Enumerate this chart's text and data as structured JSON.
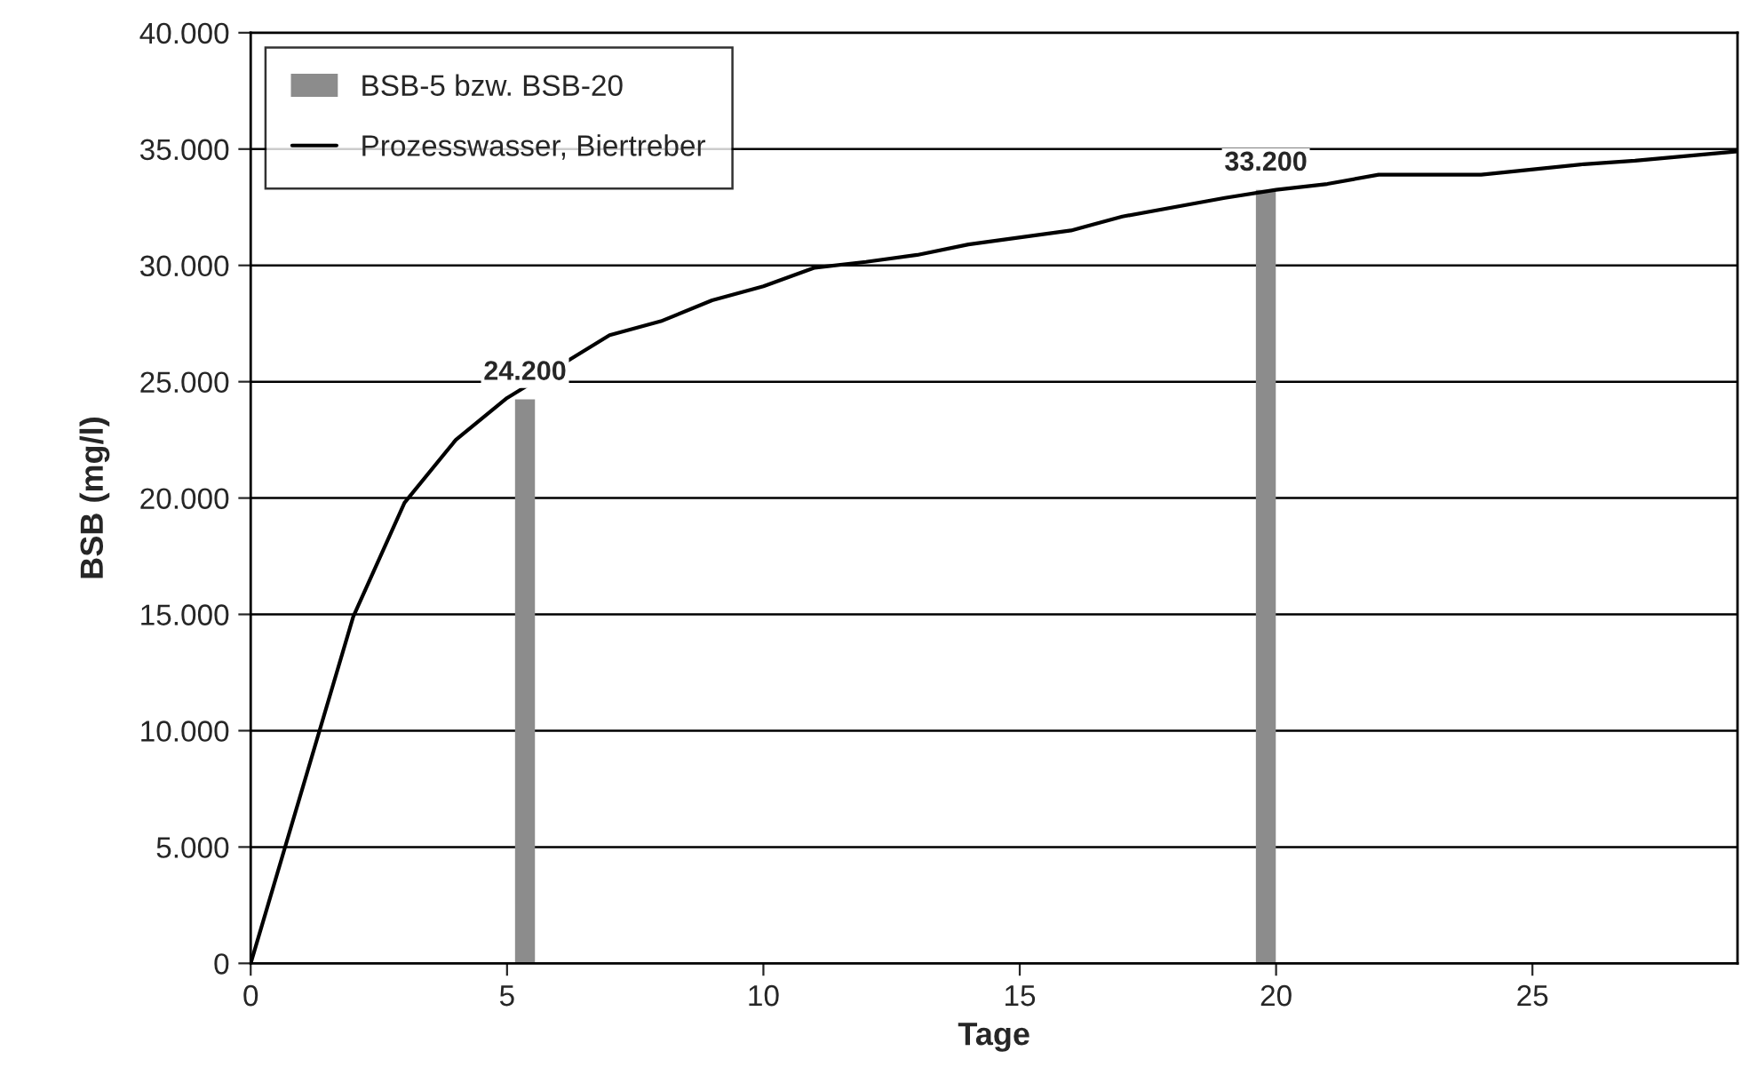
{
  "chart_data": {
    "type": "line",
    "xlabel": "Tage",
    "ylabel": "BSB (mg/l)",
    "xlim": [
      0,
      29
    ],
    "xticks": [
      0,
      5,
      10,
      15,
      20,
      25
    ],
    "ylim": [
      0,
      40000
    ],
    "yticks": [
      {
        "value": 0,
        "label": "0"
      },
      {
        "value": 5000,
        "label": "5.000"
      },
      {
        "value": 10000,
        "label": "10.000"
      },
      {
        "value": 15000,
        "label": "15.000"
      },
      {
        "value": 20000,
        "label": "20.000"
      },
      {
        "value": 25000,
        "label": "25.000"
      },
      {
        "value": 30000,
        "label": "30.000"
      },
      {
        "value": 35000,
        "label": "35.000"
      },
      {
        "value": 40000,
        "label": "40.000"
      }
    ],
    "grid": "y",
    "legend": "top left",
    "series": [
      {
        "name": "BSB-5 bzw. BSB-20",
        "type": "bar",
        "color": "#8c8c8c",
        "x": [
          5.35,
          19.8
        ],
        "values": [
          24200,
          33200
        ],
        "value_labels": [
          "24.200",
          "33.200"
        ]
      },
      {
        "name": "Prozesswasser, Biertreber",
        "color": "#000000",
        "x": [
          0,
          2,
          3,
          4,
          5,
          7,
          8,
          9,
          10,
          11,
          12,
          13,
          14,
          16,
          17,
          19,
          20,
          21,
          22,
          24,
          26,
          27,
          29
        ],
        "values": [
          0,
          14900,
          19800,
          22500,
          24300,
          27000,
          27600,
          28500,
          29100,
          29900,
          30150,
          30450,
          30900,
          31500,
          32100,
          32900,
          33250,
          33500,
          33900,
          33900,
          34350,
          34500,
          34900
        ]
      }
    ]
  }
}
